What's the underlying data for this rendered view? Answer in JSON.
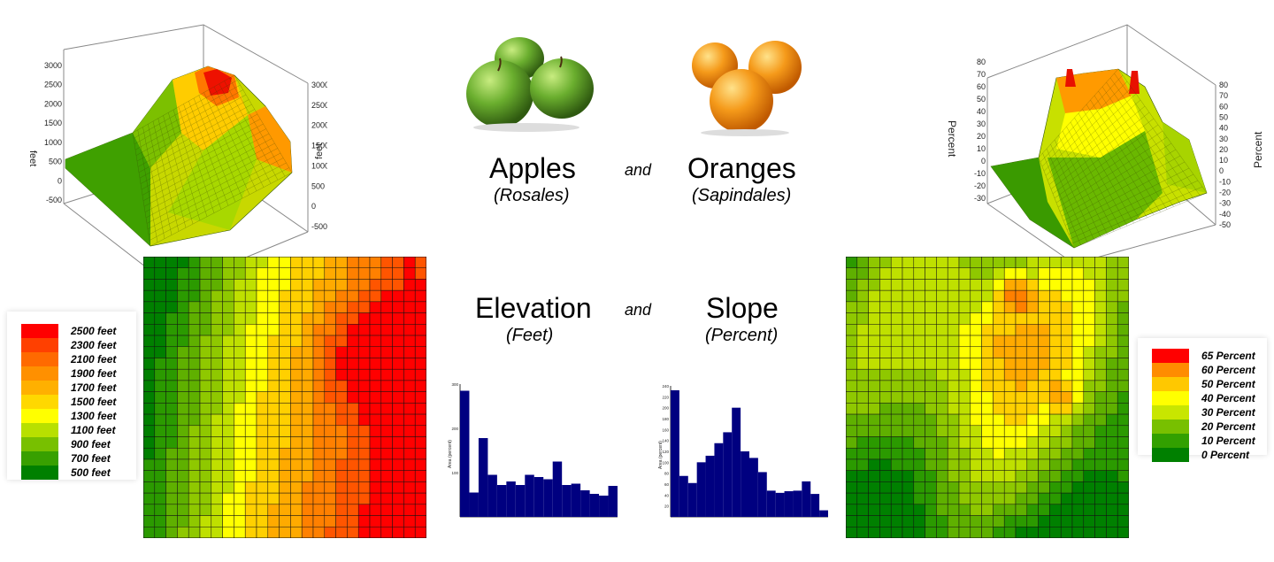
{
  "headings": {
    "apples": "Apples",
    "apples_sub": "(Rosales)",
    "and1": "and",
    "oranges": "Oranges",
    "oranges_sub": "(Sapindales)",
    "elevation": "Elevation",
    "elevation_sub": "(Feet)",
    "and2": "and",
    "slope": "Slope",
    "slope_sub": "(Percent)"
  },
  "colors": {
    "ramp": [
      "#008000",
      "#2b9a00",
      "#5fb000",
      "#8fc800",
      "#bfe000",
      "#ffff00",
      "#ffd000",
      "#ffaa00",
      "#ff8000",
      "#ff5500",
      "#ff0000"
    ],
    "histogram": "#000080",
    "apple": "#6aae2e",
    "orange": "#f59a1a"
  },
  "elevation_legend": {
    "items": [
      {
        "label": "2500 feet",
        "color": "#ff0000"
      },
      {
        "label": "2300 feet",
        "color": "#ff4000"
      },
      {
        "label": "2100 feet",
        "color": "#ff6a00"
      },
      {
        "label": "1900 feet",
        "color": "#ff9000"
      },
      {
        "label": "1700 feet",
        "color": "#ffb000"
      },
      {
        "label": "1500 feet",
        "color": "#ffd800"
      },
      {
        "label": "1300 feet",
        "color": "#ffff00"
      },
      {
        "label": "1100 feet",
        "color": "#b8e000"
      },
      {
        "label": "900 feet",
        "color": "#78c000"
      },
      {
        "label": "700 feet",
        "color": "#38a000"
      },
      {
        "label": "500 feet",
        "color": "#008000"
      }
    ]
  },
  "slope_legend": {
    "items": [
      {
        "label": "65 Percent",
        "color": "#ff0000"
      },
      {
        "label": "60 Percent",
        "color": "#ff8c00"
      },
      {
        "label": "50 Percent",
        "color": "#ffc800"
      },
      {
        "label": "40 Percent",
        "color": "#ffff00"
      },
      {
        "label": "30 Percent",
        "color": "#c8e600"
      },
      {
        "label": "20 Percent",
        "color": "#78c000"
      },
      {
        "label": "10 Percent",
        "color": "#32a000"
      },
      {
        "label": "0 Percent",
        "color": "#008000"
      }
    ]
  },
  "surface_elevation": {
    "zlabel": "feet",
    "left_ticks": [
      "3000",
      "2500",
      "2000",
      "1500",
      "1000",
      "500",
      "0",
      "-500"
    ],
    "right_ticks": [
      "3000",
      "2500",
      "2000",
      "1500",
      "1000",
      "500",
      "0",
      "-500"
    ]
  },
  "surface_slope": {
    "zlabel": "Percent",
    "left_ticks": [
      "80",
      "70",
      "60",
      "50",
      "40",
      "30",
      "20",
      "10",
      "0",
      "-10",
      "-20",
      "-30"
    ],
    "right_ticks": [
      "80",
      "70",
      "60",
      "50",
      "40",
      "30",
      "20",
      "10",
      "0",
      "-10",
      "-20",
      "-30",
      "-40",
      "-50"
    ]
  },
  "chart_data": [
    {
      "type": "bar",
      "name_hint": "elevation-histogram",
      "ylabel": "Area (percent)",
      "ylim": [
        0,
        300
      ],
      "yticks": [
        "300",
        "200",
        "100"
      ],
      "values": [
        285,
        55,
        178,
        95,
        72,
        80,
        72,
        95,
        90,
        85,
        125,
        72,
        75,
        60,
        52,
        48,
        70
      ]
    },
    {
      "type": "bar",
      "name_hint": "slope-histogram",
      "ylabel": "Area (percent)",
      "ylim": [
        0,
        240
      ],
      "yticks": [
        "240",
        "220",
        "200",
        "180",
        "160",
        "140",
        "120",
        "100",
        "80",
        "60",
        "40",
        "20"
      ],
      "values": [
        232,
        75,
        62,
        100,
        112,
        135,
        155,
        200,
        120,
        108,
        82,
        48,
        44,
        47,
        48,
        65,
        42,
        12
      ]
    }
  ]
}
